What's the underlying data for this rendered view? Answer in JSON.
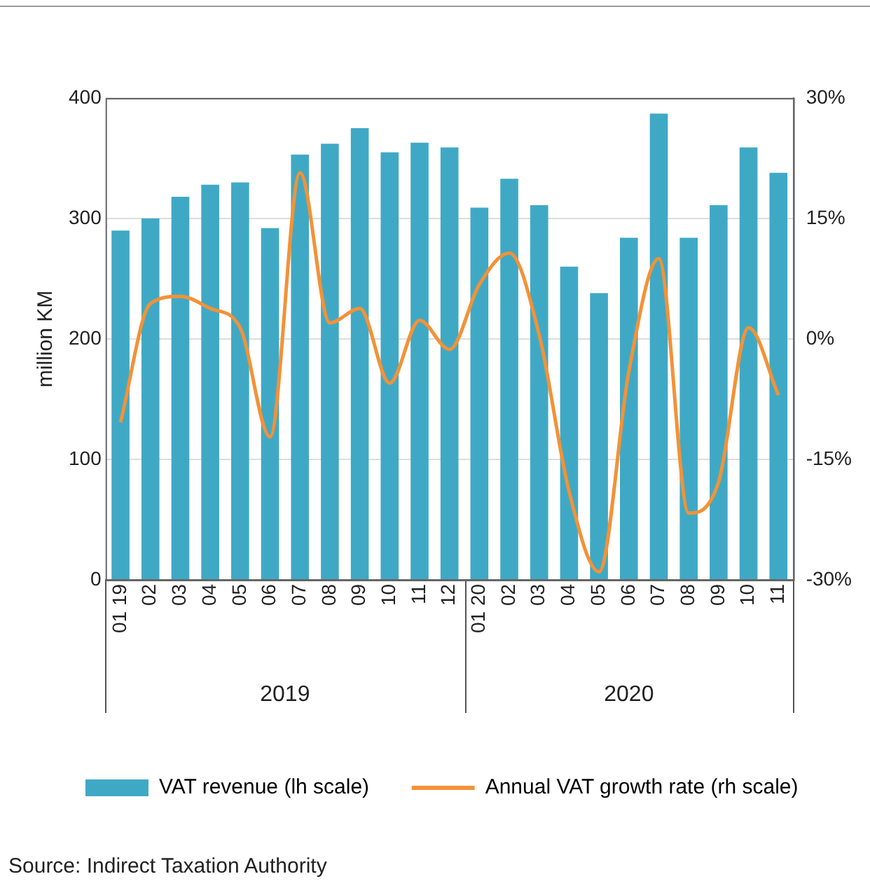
{
  "chart_data": {
    "type": "bar",
    "ylabel": "million KM",
    "categories": [
      "01 19",
      "02",
      "03",
      "04",
      "05",
      "06",
      "07",
      "08",
      "09",
      "10",
      "11",
      "12",
      "01 20",
      "02",
      "03",
      "04",
      "05",
      "06",
      "07",
      "08",
      "09",
      "10",
      "11"
    ],
    "series": [
      {
        "name": "VAT revenue (lh scale)",
        "color": "#3fa9c5",
        "values": [
          290,
          300,
          318,
          328,
          330,
          292,
          353,
          362,
          375,
          355,
          363,
          359,
          309,
          333,
          311,
          260,
          238,
          284,
          387,
          284,
          311,
          359,
          338
        ]
      },
      {
        "name": "Annual VAT growth rate (rh scale)",
        "type": "line",
        "axis": "y2",
        "color": "#f39237",
        "values": [
          -10.4,
          4.4,
          5.3,
          3.8,
          1.4,
          -12.2,
          20.7,
          2,
          3.8,
          -5.5,
          2.3,
          -1.3,
          6.8,
          10.7,
          0.5,
          -19,
          -29,
          -4,
          10,
          -21.7,
          -17.8,
          1.4,
          -7
        ]
      }
    ],
    "ylim": [
      0,
      400
    ],
    "yticks": [
      0,
      100,
      200,
      300,
      400
    ],
    "y2lim": [
      -30,
      30
    ],
    "y2ticks": [
      {
        "value": -30,
        "label": "-30%"
      },
      {
        "value": -15,
        "label": "-15%"
      },
      {
        "value": 0,
        "label": "0%"
      },
      {
        "value": 15,
        "label": "15%"
      },
      {
        "value": 30,
        "label": "30%"
      }
    ],
    "grid": "y",
    "legend": "bottom",
    "marker": "none",
    "annotations": [
      "2019",
      "2020",
      "Source: Indirect Taxation Authority"
    ]
  }
}
